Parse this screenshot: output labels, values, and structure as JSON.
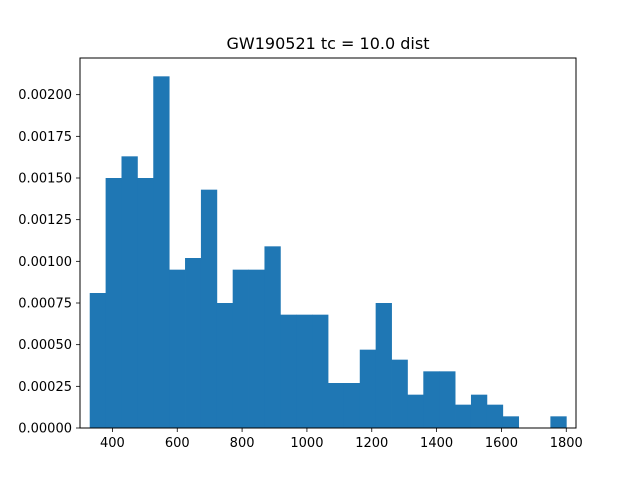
{
  "chart_data": {
    "type": "bar",
    "title": "GW190521 tc = 10.0 dist",
    "xlabel": "",
    "ylabel": "",
    "xlim": [
      300,
      1830
    ],
    "ylim": [
      0,
      0.00222
    ],
    "x_ticks": [
      400,
      600,
      800,
      1000,
      1200,
      1400,
      1600,
      1800
    ],
    "y_ticks": [
      0,
      0.00025,
      0.0005,
      0.00075,
      0.001,
      0.00125,
      0.0015,
      0.00175,
      0.002
    ],
    "y_tick_labels": [
      "0.00000",
      "0.00025",
      "0.00050",
      "0.00075",
      "0.00100",
      "0.00125",
      "0.00150",
      "0.00175",
      "0.00200"
    ],
    "bar_color": "#1f77b4",
    "grid": false,
    "bin_edges": [
      330,
      379,
      428,
      477,
      526,
      575,
      624,
      673,
      722,
      771,
      820,
      869,
      918,
      967,
      1016,
      1065,
      1114,
      1163,
      1212,
      1261,
      1310,
      1359,
      1408,
      1457,
      1506,
      1555,
      1604,
      1653,
      1702,
      1751,
      1800
    ],
    "values": [
      0.00081,
      0.0015,
      0.00163,
      0.0015,
      0.00211,
      0.00095,
      0.00102,
      0.00143,
      0.00075,
      0.00095,
      0.00095,
      0.00109,
      0.00068,
      0.00068,
      0.00068,
      0.00027,
      0.00027,
      0.00047,
      0.00075,
      0.00041,
      0.0002,
      0.00034,
      0.00034,
      0.00014,
      0.0002,
      0.00014,
      7e-05,
      0,
      0,
      7e-05
    ]
  }
}
